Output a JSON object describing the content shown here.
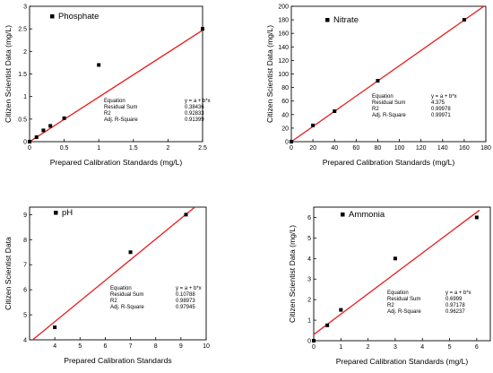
{
  "chart_data": [
    {
      "type": "scatter",
      "xlabel": "Prepared Calibration Standards (mg/L)",
      "ylabel": "Citizen Scientist Data (mg/L)",
      "xlim": [
        0,
        2.5
      ],
      "ylim": [
        0,
        3
      ],
      "xticks": [
        "0",
        "0.5",
        "1",
        "1.5",
        "2",
        "2.5"
      ],
      "yticks": [
        "0",
        "0.5",
        "1",
        "1.5",
        "2",
        "2.5",
        "3"
      ],
      "series": [
        {
          "name": "Phosphate",
          "x": [
            0,
            0.1,
            0.2,
            0.3,
            0.5,
            1.0,
            2.5
          ],
          "y": [
            0,
            0.1,
            0.25,
            0.35,
            0.52,
            1.7,
            2.5
          ]
        }
      ],
      "fit_line": {
        "x": [
          0,
          2.5
        ],
        "y": [
          0,
          2.47
        ]
      },
      "line_color": "#e81c1c",
      "stats": {
        "rows": [
          {
            "label": "Equation",
            "value": "y = a + b*x"
          },
          {
            "label": "Residual Sum",
            "value": "0.38436"
          },
          {
            "label": "R2",
            "value": "0.92833"
          },
          {
            "label": "Adj. R-Square",
            "value": "0.91399"
          }
        ]
      },
      "legend_position": "top-left"
    },
    {
      "type": "scatter",
      "xlabel": "Prepared Calibration Standards (mg/L)",
      "ylabel": "Citizen Scientist Data (mg/L)",
      "xlim": [
        0,
        180
      ],
      "ylim": [
        0,
        200
      ],
      "xticks": [
        "0",
        "20",
        "40",
        "60",
        "80",
        "100",
        "120",
        "140",
        "160",
        "180"
      ],
      "yticks": [
        "0",
        "20",
        "40",
        "60",
        "80",
        "100",
        "120",
        "140",
        "160",
        "180",
        "200"
      ],
      "series": [
        {
          "name": "Nitrate",
          "x": [
            0,
            20,
            40,
            80,
            160
          ],
          "y": [
            0,
            24,
            45,
            90,
            180
          ]
        }
      ],
      "fit_line": {
        "x": [
          0,
          180
        ],
        "y": [
          0,
          202
        ]
      },
      "line_color": "#e81c1c",
      "stats": {
        "rows": [
          {
            "label": "Equation",
            "value": "y = a + b*x"
          },
          {
            "label": "Residual Sum",
            "value": "4.375"
          },
          {
            "label": "R2",
            "value": "0.99978"
          },
          {
            "label": "Adj. R-Square",
            "value": "0.99971"
          }
        ]
      },
      "legend_position": "top-left"
    },
    {
      "type": "scatter",
      "xlabel": "Prepared Calibration Standards",
      "ylabel": "Citizen Scientist Data",
      "xlim": [
        3,
        10
      ],
      "ylim": [
        4,
        9.3
      ],
      "xticks": [
        "4",
        "5",
        "6",
        "7",
        "8",
        "9",
        "10"
      ],
      "yticks": [
        "4",
        "5",
        "6",
        "7",
        "8",
        "9"
      ],
      "series": [
        {
          "name": "pH",
          "x": [
            4,
            7,
            9.2
          ],
          "y": [
            4.5,
            7.5,
            9.0
          ]
        }
      ],
      "fit_line": {
        "x": [
          3,
          9.55
        ],
        "y": [
          3.9,
          9.3
        ]
      },
      "line_color": "#e81c1c",
      "stats": {
        "rows": [
          {
            "label": "Equation",
            "value": "y = a + b*x"
          },
          {
            "label": "Residual Sum",
            "value": "0.10788"
          },
          {
            "label": "R2",
            "value": "0.98973"
          },
          {
            "label": "Adj. R-Square",
            "value": "0.97945"
          }
        ]
      },
      "legend_position": "top-left"
    },
    {
      "type": "scatter",
      "xlabel": "Prepared Calibration Standards (mg/L)",
      "ylabel": "Citizen Scientist Data (mg/L)",
      "xlim": [
        0,
        6.5
      ],
      "ylim": [
        0,
        6.5
      ],
      "xticks": [
        "0",
        "1",
        "2",
        "3",
        "4",
        "5",
        "6"
      ],
      "yticks": [
        "0",
        "1",
        "2",
        "3",
        "4",
        "5",
        "6"
      ],
      "series": [
        {
          "name": "Ammonia",
          "x": [
            0,
            0.5,
            1,
            3,
            6
          ],
          "y": [
            0,
            0.75,
            1.5,
            4.0,
            6.0
          ]
        }
      ],
      "fit_line": {
        "x": [
          0,
          6.1
        ],
        "y": [
          0.3,
          6.35
        ]
      },
      "line_color": "#e81c1c",
      "stats": {
        "rows": [
          {
            "label": "Equation",
            "value": "y = a + b*x"
          },
          {
            "label": "Residual Sum",
            "value": "0.6999"
          },
          {
            "label": "R2",
            "value": "0.97178"
          },
          {
            "label": "Adj. R-Square",
            "value": "0.96237"
          }
        ]
      },
      "legend_position": "top-left"
    }
  ]
}
